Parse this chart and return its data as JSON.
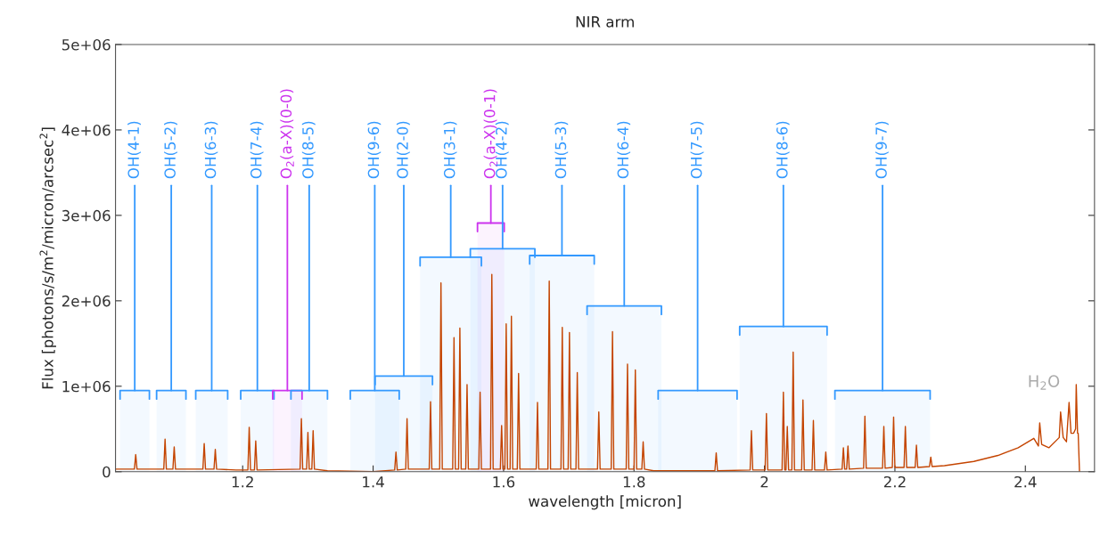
{
  "chart_data": {
    "type": "line",
    "title": "NIR arm",
    "xlabel": "wavelength [micron]",
    "ylabel": "Flux [photons/s/m$^{2}$/micron/arcsec$^{2}$]",
    "xlim": [
      1.005,
      2.506
    ],
    "xticks": [
      1.2,
      1.4,
      1.6,
      1.8,
      2,
      2.2,
      2.4
    ],
    "ylim": [
      0,
      5000000
    ],
    "yticks": [
      0,
      {
        "value": 1000000,
        "label": "1e+06"
      },
      {
        "value": 2000000,
        "label": "2e+06"
      },
      {
        "value": 3000000,
        "label": "3e+06"
      },
      {
        "value": 4000000,
        "label": "4e+06"
      },
      {
        "value": 5000000,
        "label": "5e+06"
      }
    ],
    "grid": false,
    "legend": false,
    "marker": "none",
    "line_style": "solid",
    "series": [
      {
        "color": "#c44400",
        "x": [
          1.006,
          1.034,
          1.036,
          1.038,
          1.079,
          1.081,
          1.083,
          1.093,
          1.095,
          1.097,
          1.139,
          1.141,
          1.143,
          1.156,
          1.158,
          1.16,
          1.19,
          1.208,
          1.21,
          1.212,
          1.218,
          1.22,
          1.222,
          1.288,
          1.29,
          1.292,
          1.298,
          1.3,
          1.302,
          1.306,
          1.308,
          1.31,
          1.33,
          1.4,
          1.433,
          1.435,
          1.437,
          1.45,
          1.452,
          1.454,
          1.486,
          1.488,
          1.49,
          1.502,
          1.504,
          1.506,
          1.522,
          1.524,
          1.526,
          1.531,
          1.533,
          1.535,
          1.542,
          1.544,
          1.546,
          1.562,
          1.564,
          1.566,
          1.58,
          1.582,
          1.584,
          1.595,
          1.597,
          1.599,
          1.602,
          1.604,
          1.606,
          1.61,
          1.612,
          1.614,
          1.621,
          1.623,
          1.625,
          1.65,
          1.652,
          1.654,
          1.668,
          1.67,
          1.672,
          1.688,
          1.69,
          1.692,
          1.699,
          1.701,
          1.703,
          1.711,
          1.713,
          1.715,
          1.744,
          1.746,
          1.748,
          1.765,
          1.767,
          1.769,
          1.788,
          1.79,
          1.792,
          1.8,
          1.802,
          1.804,
          1.812,
          1.814,
          1.816,
          1.83,
          1.9,
          1.924,
          1.926,
          1.928,
          1.978,
          1.98,
          1.982,
          2.001,
          2.003,
          2.005,
          2.027,
          2.029,
          2.031,
          2.033,
          2.035,
          2.037,
          2.042,
          2.044,
          2.046,
          2.057,
          2.059,
          2.061,
          2.073,
          2.075,
          2.077,
          2.092,
          2.094,
          2.096,
          2.119,
          2.121,
          2.123,
          2.126,
          2.128,
          2.13,
          2.152,
          2.154,
          2.156,
          2.181,
          2.183,
          2.185,
          2.196,
          2.198,
          2.2,
          2.214,
          2.216,
          2.218,
          2.231,
          2.233,
          2.235,
          2.253,
          2.255,
          2.257,
          2.276,
          2.321,
          2.358,
          2.389,
          2.413,
          2.42,
          2.422,
          2.425,
          2.436,
          2.452,
          2.454,
          2.458,
          2.463,
          2.467,
          2.47,
          2.474,
          2.477,
          2.478,
          2.48,
          2.481,
          2.483
        ],
        "values": [
          30000,
          30000,
          200000,
          30000,
          30000,
          380000,
          30000,
          30000,
          290000,
          30000,
          30000,
          330000,
          30000,
          30000,
          260000,
          30000,
          20000,
          20000,
          520000,
          20000,
          20000,
          360000,
          20000,
          30000,
          620000,
          30000,
          30000,
          460000,
          30000,
          30000,
          480000,
          30000,
          10000,
          0,
          20000,
          230000,
          20000,
          30000,
          620000,
          30000,
          30000,
          820000,
          30000,
          30000,
          2210000,
          30000,
          30000,
          1570000,
          30000,
          30000,
          1680000,
          30000,
          30000,
          1020000,
          30000,
          30000,
          930000,
          30000,
          30000,
          2310000,
          30000,
          30000,
          540000,
          30000,
          30000,
          1730000,
          30000,
          30000,
          1820000,
          30000,
          30000,
          1150000,
          30000,
          30000,
          810000,
          30000,
          30000,
          2230000,
          30000,
          30000,
          1690000,
          30000,
          30000,
          1630000,
          30000,
          30000,
          1160000,
          30000,
          30000,
          700000,
          30000,
          30000,
          1640000,
          30000,
          30000,
          1260000,
          30000,
          30000,
          1190000,
          30000,
          30000,
          350000,
          30000,
          10000,
          10000,
          10000,
          220000,
          10000,
          20000,
          480000,
          20000,
          20000,
          680000,
          20000,
          20000,
          930000,
          20000,
          20000,
          530000,
          20000,
          20000,
          1400000,
          20000,
          20000,
          840000,
          20000,
          20000,
          600000,
          20000,
          20000,
          230000,
          20000,
          30000,
          280000,
          30000,
          30000,
          300000,
          30000,
          40000,
          650000,
          40000,
          40000,
          530000,
          40000,
          50000,
          640000,
          50000,
          50000,
          530000,
          50000,
          50000,
          310000,
          50000,
          60000,
          170000,
          60000,
          70000,
          120000,
          190000,
          280000,
          390000,
          300000,
          570000,
          320000,
          280000,
          400000,
          700000,
          400000,
          350000,
          810000,
          450000,
          450000,
          500000,
          1020000,
          450000,
          450000,
          0
        ]
      }
    ],
    "annotations": [
      "H$_{2}$O"
    ],
    "bands": [
      {
        "axis": "x",
        "from": 1.012,
        "to": 1.057,
        "label": "OH(4-1)",
        "color": "#3399ff"
      },
      {
        "axis": "x",
        "from": 1.068,
        "to": 1.113,
        "label": "OH(5-2)",
        "color": "#3399ff"
      },
      {
        "axis": "x",
        "from": 1.128,
        "to": 1.177,
        "label": "OH(6-3)",
        "color": "#3399ff"
      },
      {
        "axis": "x",
        "from": 1.197,
        "to": 1.248,
        "label": "OH(7-4)",
        "color": "#3399ff"
      },
      {
        "axis": "x",
        "from": 1.246,
        "to": 1.291,
        "label": "O$_{2}$(a-X)(0-0)",
        "color": "#cc33ee"
      },
      {
        "axis": "x",
        "from": 1.274,
        "to": 1.33,
        "label": "OH(8-5)",
        "color": "#3399ff"
      },
      {
        "axis": "x",
        "from": 1.365,
        "to": 1.44,
        "label": "OH(9-6)",
        "color": "#3399ff"
      },
      {
        "axis": "x",
        "from": 1.403,
        "to": 1.491,
        "label": "OH(2-0)",
        "color": "#3399ff"
      },
      {
        "axis": "x",
        "from": 1.472,
        "to": 1.566,
        "label": "OH(3-1)",
        "color": "#3399ff"
      },
      {
        "axis": "x",
        "from": 1.56,
        "to": 1.601,
        "label": "O$_{2}$(a-X)(0-1)",
        "color": "#cc33ee"
      },
      {
        "axis": "x",
        "from": 1.549,
        "to": 1.648,
        "label": "OH(4-2)",
        "color": "#3399ff"
      },
      {
        "axis": "x",
        "from": 1.64,
        "to": 1.739,
        "label": "OH(5-3)",
        "color": "#3399ff"
      },
      {
        "axis": "x",
        "from": 1.728,
        "to": 1.842,
        "label": "OH(6-4)",
        "color": "#3399ff"
      },
      {
        "axis": "x",
        "from": 1.837,
        "to": 1.958,
        "label": "OH(7-5)",
        "color": "#3399ff"
      },
      {
        "axis": "x",
        "from": 1.962,
        "to": 2.096,
        "label": "OH(8-6)",
        "color": "#3399ff"
      },
      {
        "axis": "x",
        "from": 2.108,
        "to": 2.254,
        "label": "OH(9-7)",
        "color": "#3399ff"
      }
    ]
  }
}
